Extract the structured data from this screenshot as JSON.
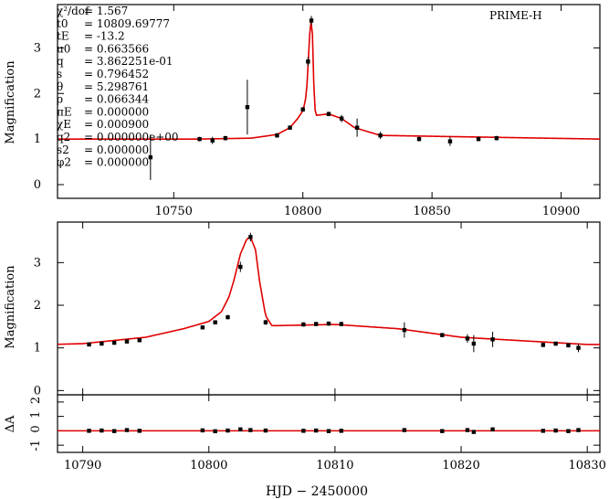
{
  "chart_data": [
    {
      "name": "full",
      "type": "line",
      "label": "PRIME-H",
      "xlim": [
        10705,
        10915
      ],
      "ylim": [
        -0.3,
        3.95
      ],
      "xticks": [
        10750,
        10800,
        10850,
        10900
      ],
      "yticks": [
        0,
        1,
        2,
        3
      ],
      "ylabel": "Magnification",
      "params": [
        {
          "label": "χ²/dof",
          "value": "= 1.567"
        },
        {
          "label": "t0",
          "value": "= 10809.69777"
        },
        {
          "label": "tE",
          "value": "= -13.2"
        },
        {
          "label": "u0",
          "value": "= 0.663566"
        },
        {
          "label": "q",
          "value": "= 3.862251e-01"
        },
        {
          "label": "s",
          "value": "= 0.796452"
        },
        {
          "label": "θ",
          "value": "= 5.298761"
        },
        {
          "label": "ρ",
          "value": "= 0.066344"
        },
        {
          "label": "πE",
          "value": "= 0.000000"
        },
        {
          "label": "χE",
          "value": "= 0.000900"
        },
        {
          "label": "q2",
          "value": "= 0.000000e+00"
        },
        {
          "label": "s2",
          "value": "= 0.000000"
        },
        {
          "label": "φ2",
          "value": "= 0.000000"
        }
      ],
      "model": {
        "color": "#e00000",
        "x": [
          10705,
          10760,
          10780,
          10790,
          10795,
          10798,
          10800,
          10801,
          10801.6,
          10802,
          10802.5,
          10803,
          10803.3,
          10803.7,
          10804,
          10804.5,
          10805,
          10810,
          10815,
          10820,
          10830,
          10915
        ],
        "y": [
          1.0,
          1.0,
          1.02,
          1.1,
          1.25,
          1.45,
          1.62,
          1.85,
          2.2,
          2.6,
          3.2,
          3.55,
          3.6,
          3.3,
          2.6,
          1.75,
          1.52,
          1.55,
          1.45,
          1.25,
          1.08,
          1.0
        ]
      },
      "points": [
        {
          "x": 10741,
          "y": 0.6,
          "e": 0.5
        },
        {
          "x": 10778.5,
          "y": 1.7,
          "e": 0.6
        },
        {
          "x": 10760,
          "y": 1.0,
          "e": 0.05
        },
        {
          "x": 10765,
          "y": 0.97,
          "e": 0.08
        },
        {
          "x": 10770,
          "y": 1.02,
          "e": 0.05
        },
        {
          "x": 10790,
          "y": 1.08,
          "e": 0.05
        },
        {
          "x": 10795,
          "y": 1.25,
          "e": 0.05
        },
        {
          "x": 10800,
          "y": 1.65,
          "e": 0.05
        },
        {
          "x": 10802,
          "y": 2.7,
          "e": 0.1
        },
        {
          "x": 10803.3,
          "y": 3.6,
          "e": 0.1
        },
        {
          "x": 10810,
          "y": 1.55,
          "e": 0.05
        },
        {
          "x": 10815,
          "y": 1.45,
          "e": 0.08
        },
        {
          "x": 10821,
          "y": 1.25,
          "e": 0.2
        },
        {
          "x": 10830,
          "y": 1.08,
          "e": 0.08
        },
        {
          "x": 10845,
          "y": 1.0,
          "e": 0.05
        },
        {
          "x": 10857,
          "y": 0.95,
          "e": 0.1
        },
        {
          "x": 10868,
          "y": 1.0,
          "e": 0.05
        },
        {
          "x": 10875,
          "y": 1.02,
          "e": 0.05
        }
      ]
    },
    {
      "name": "zoom",
      "type": "line",
      "xlim": [
        10788,
        10831
      ],
      "ylim": [
        -0.1,
        3.95
      ],
      "xticks": [
        10790,
        10800,
        10810,
        10820,
        10830
      ],
      "yticks": [
        0,
        1,
        2,
        3
      ],
      "ylabel": "Magnification",
      "points": [
        {
          "x": 10790.5,
          "y": 1.08,
          "e": 0.04
        },
        {
          "x": 10791.5,
          "y": 1.1,
          "e": 0.04
        },
        {
          "x": 10792.5,
          "y": 1.12,
          "e": 0.04
        },
        {
          "x": 10793.5,
          "y": 1.15,
          "e": 0.04
        },
        {
          "x": 10794.5,
          "y": 1.18,
          "e": 0.04
        },
        {
          "x": 10799.5,
          "y": 1.48,
          "e": 0.04
        },
        {
          "x": 10800.5,
          "y": 1.6,
          "e": 0.04
        },
        {
          "x": 10801.5,
          "y": 1.72,
          "e": 0.05
        },
        {
          "x": 10802.5,
          "y": 2.9,
          "e": 0.12
        },
        {
          "x": 10803.3,
          "y": 3.6,
          "e": 0.1
        },
        {
          "x": 10804.5,
          "y": 1.6,
          "e": 0.06
        },
        {
          "x": 10807.5,
          "y": 1.55,
          "e": 0.05
        },
        {
          "x": 10808.5,
          "y": 1.56,
          "e": 0.05
        },
        {
          "x": 10809.5,
          "y": 1.57,
          "e": 0.05
        },
        {
          "x": 10810.5,
          "y": 1.56,
          "e": 0.05
        },
        {
          "x": 10815.5,
          "y": 1.42,
          "e": 0.18
        },
        {
          "x": 10818.5,
          "y": 1.3,
          "e": 0.05
        },
        {
          "x": 10820.5,
          "y": 1.22,
          "e": 0.1
        },
        {
          "x": 10821,
          "y": 1.1,
          "e": 0.2
        },
        {
          "x": 10822.5,
          "y": 1.2,
          "e": 0.18
        },
        {
          "x": 10826.5,
          "y": 1.07,
          "e": 0.05
        },
        {
          "x": 10827.5,
          "y": 1.1,
          "e": 0.05
        },
        {
          "x": 10828.5,
          "y": 1.06,
          "e": 0.05
        },
        {
          "x": 10829.3,
          "y": 1.0,
          "e": 0.1
        }
      ]
    },
    {
      "name": "residual",
      "type": "scatter",
      "xlim": [
        10788,
        10831
      ],
      "ylim": [
        -1.5,
        2.5
      ],
      "xticks": [
        10790,
        10800,
        10810,
        10820,
        10830
      ],
      "yticks": [
        -1,
        0,
        1,
        2
      ],
      "ylabel": "ΔA",
      "xlabel": "HJD − 2450000",
      "x": [
        10790.5,
        10791.5,
        10792.5,
        10793.5,
        10794.5,
        10799.5,
        10800.5,
        10801.5,
        10802.5,
        10803.3,
        10804.5,
        10807.5,
        10808.5,
        10809.5,
        10810.5,
        10815.5,
        10818.5,
        10820.5,
        10821,
        10822.5,
        10826.5,
        10827.5,
        10828.5,
        10829.3
      ],
      "y": [
        0,
        0.02,
        -0.02,
        0.05,
        0,
        0.03,
        -0.03,
        0.02,
        0.1,
        0.05,
        0.02,
        0,
        0.02,
        -0.02,
        0,
        0.05,
        -0.02,
        0.05,
        -0.08,
        0.1,
        0,
        0.02,
        -0.02,
        0.05
      ]
    }
  ]
}
